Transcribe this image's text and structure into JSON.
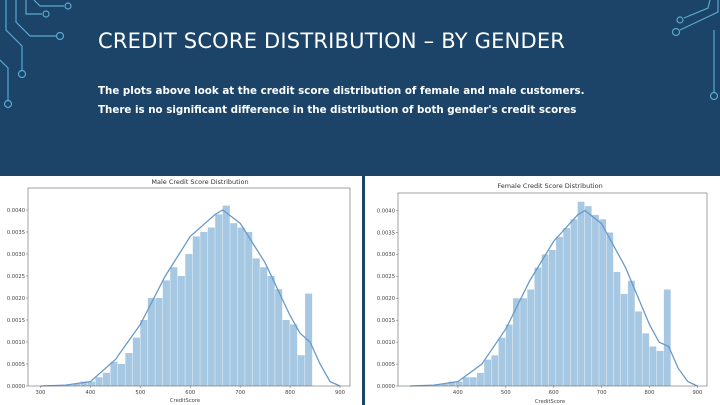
{
  "slide": {
    "title": "CREDIT SCORE DISTRIBUTION – BY GENDER",
    "body_lines": [
      "The plots above look at the credit score distribution of female and male customers.",
      "There is no significant difference in the distribution of both gender's credit scores"
    ],
    "colors": {
      "banner": "#1b4468",
      "accent": "#5aa9cf",
      "text": "#ffffff"
    },
    "decoration": "circuit-lines"
  },
  "chart_data": [
    {
      "type": "bar",
      "title": "Male Credit Score Distribution",
      "xlabel": "CreditScore",
      "ylabel": "",
      "xlim": [
        275,
        920
      ],
      "ylim": [
        0,
        0.0045
      ],
      "xticks": [
        300,
        400,
        500,
        600,
        700,
        800,
        900
      ],
      "yticks": [
        0.0,
        0.0005,
        0.001,
        0.0015,
        0.002,
        0.0025,
        0.003,
        0.0035,
        0.004
      ],
      "ytick_labels": [
        "0.0000",
        "0.0005",
        "0.0010",
        "0.0015",
        "0.0020",
        "0.0025",
        "0.0030",
        "0.0035",
        "0.0040"
      ],
      "grid": false,
      "bin_width": 15,
      "bins_start": [
        350,
        365,
        380,
        395,
        410,
        425,
        440,
        455,
        470,
        485,
        500,
        515,
        530,
        545,
        560,
        575,
        590,
        605,
        620,
        635,
        650,
        665,
        680,
        695,
        710,
        725,
        740,
        755,
        770,
        785,
        800,
        815,
        830
      ],
      "values": [
        2e-05,
        5e-05,
        0.0001,
        0.0001,
        0.0002,
        0.0003,
        0.00055,
        0.0005,
        0.00075,
        0.0011,
        0.0015,
        0.002,
        0.002,
        0.0024,
        0.0027,
        0.0025,
        0.003,
        0.0034,
        0.0035,
        0.0036,
        0.0039,
        0.0041,
        0.0037,
        0.0036,
        0.0035,
        0.0029,
        0.0027,
        0.0025,
        0.0022,
        0.0015,
        0.0014,
        0.0007,
        0.0021
      ],
      "kde": {
        "x": [
          300,
          350,
          400,
          450,
          500,
          550,
          600,
          650,
          665,
          700,
          750,
          800,
          820,
          840,
          860,
          880,
          900
        ],
        "y": [
          0.0,
          2e-05,
          0.0001,
          0.0006,
          0.0014,
          0.0025,
          0.0034,
          0.0039,
          0.004,
          0.0037,
          0.0028,
          0.0016,
          0.0012,
          0.001,
          0.0005,
          0.0001,
          0.0
        ]
      },
      "colors": {
        "bars": "#a6c8e2",
        "kde": "#6a9ac8"
      }
    },
    {
      "type": "bar",
      "title": "Female Credit Score Distribution",
      "xlabel": "CreditScore",
      "ylabel": "",
      "xlim": [
        275,
        920
      ],
      "ylim": [
        0,
        0.0044
      ],
      "xticks": [
        400,
        500,
        600,
        700,
        800,
        900
      ],
      "yticks": [
        0.0,
        0.0005,
        0.001,
        0.0015,
        0.002,
        0.0025,
        0.003,
        0.0035,
        0.004
      ],
      "ytick_labels": [
        "0.0000",
        "0.0005",
        "0.0010",
        "0.0015",
        "0.0020",
        "0.0025",
        "0.0030",
        "0.0035",
        "0.0040"
      ],
      "grid": false,
      "bin_width": 15,
      "bins_start": [
        350,
        365,
        380,
        395,
        410,
        425,
        440,
        455,
        470,
        485,
        500,
        515,
        530,
        545,
        560,
        575,
        590,
        605,
        620,
        635,
        650,
        665,
        680,
        695,
        710,
        725,
        740,
        755,
        770,
        785,
        800,
        815,
        830
      ],
      "values": [
        2e-05,
        5e-05,
        0.0001,
        0.0001,
        0.0002,
        0.0002,
        0.0003,
        0.0006,
        0.0007,
        0.0011,
        0.0014,
        0.002,
        0.002,
        0.0022,
        0.0027,
        0.003,
        0.0031,
        0.0034,
        0.0036,
        0.0038,
        0.0042,
        0.0041,
        0.0039,
        0.0038,
        0.0035,
        0.0026,
        0.0021,
        0.0024,
        0.0017,
        0.0012,
        0.0009,
        0.0008,
        0.0022
      ],
      "kde": {
        "x": [
          300,
          350,
          400,
          450,
          500,
          550,
          600,
          650,
          665,
          700,
          750,
          800,
          820,
          840,
          860,
          880,
          900
        ],
        "y": [
          0.0,
          2e-05,
          0.0001,
          0.0005,
          0.0013,
          0.0024,
          0.0033,
          0.0039,
          0.004,
          0.0037,
          0.0027,
          0.0014,
          0.001,
          0.0009,
          0.0004,
          0.0001,
          0.0
        ]
      },
      "colors": {
        "bars": "#a6c8e2",
        "kde": "#6a9ac8"
      }
    }
  ]
}
